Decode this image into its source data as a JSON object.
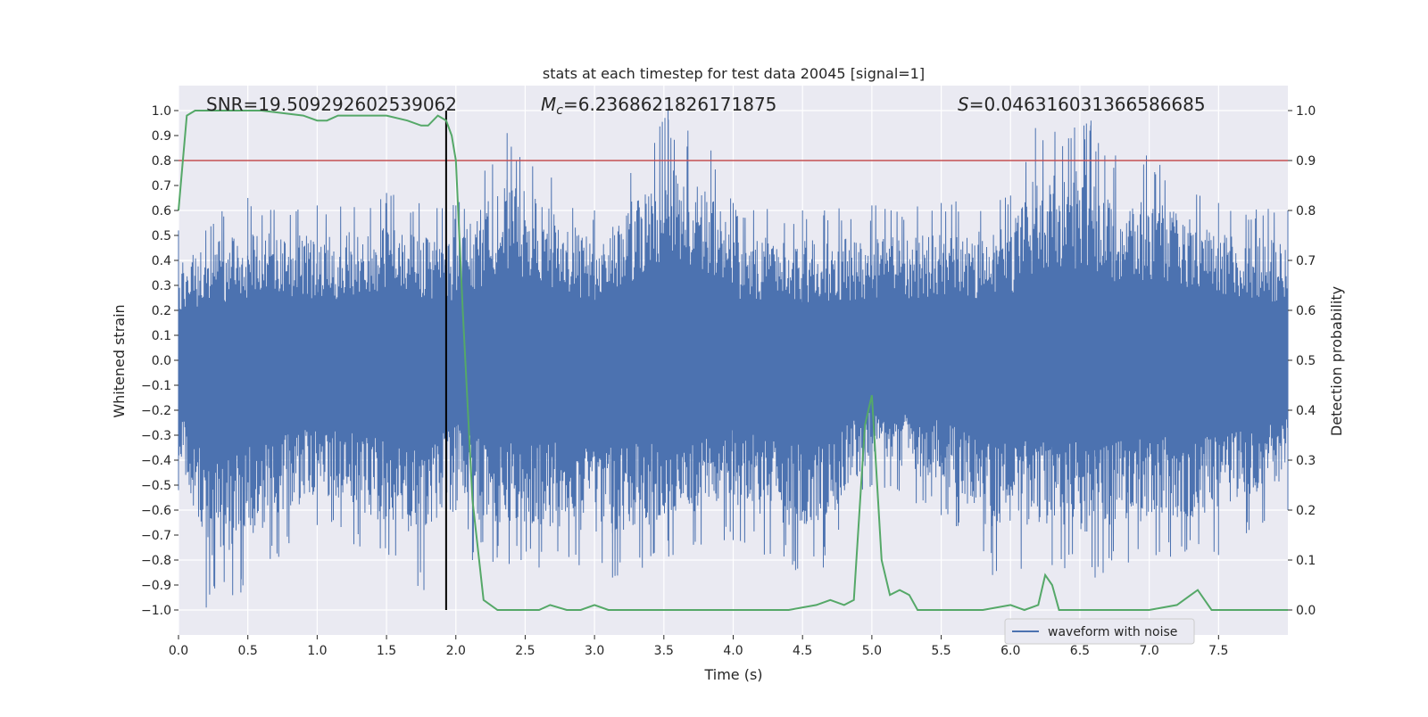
{
  "chart_data": {
    "type": "line",
    "title": "stats at each timestep for test data 20045 [signal=1]",
    "xlabel": "Time (s)",
    "ylabel_left": "Whitened strain",
    "ylabel_right": "Detection probability",
    "xlim": [
      0,
      8
    ],
    "ylim_left": [
      -1.1,
      1.1
    ],
    "ylim_right": [
      -0.05,
      1.05
    ],
    "x_ticks": [
      "0.0",
      "0.5",
      "1.0",
      "1.5",
      "2.0",
      "2.5",
      "3.0",
      "3.5",
      "4.0",
      "4.5",
      "5.0",
      "5.5",
      "6.0",
      "6.5",
      "7.0",
      "7.5"
    ],
    "y_ticks_left": [
      "1.0",
      "0.9",
      "0.8",
      "0.7",
      "0.6",
      "0.5",
      "0.4",
      "0.3",
      "0.2",
      "0.1",
      "0.0",
      "−0.1",
      "−0.2",
      "−0.3",
      "−0.4",
      "−0.5",
      "−0.6",
      "−0.7",
      "−0.8",
      "−0.9",
      "−1.0"
    ],
    "y_ticks_right": [
      "1.0",
      "0.9",
      "0.8",
      "0.7",
      "0.6",
      "0.5",
      "0.4",
      "0.3",
      "0.2",
      "0.1",
      "0.0"
    ],
    "annotations": {
      "snr": "SNR=19.509292602539062",
      "mc_symbol": "M",
      "mc_sub": "c",
      "mc_value": "=6.2368621826171875",
      "s_symbol": "S",
      "s_value": "=0.046316031366586685"
    },
    "threshold_line": {
      "axis": "right",
      "y": 0.9,
      "color": "#c44e52"
    },
    "marker_line": {
      "x": 1.93,
      "y_range": [
        -1.0,
        1.0
      ],
      "color": "#000000"
    },
    "legend": {
      "entries": [
        "waveform with noise"
      ],
      "placement": "lower-right"
    },
    "grid": true,
    "series": [
      {
        "name": "waveform with noise",
        "axis": "left",
        "color": "#4c72b0",
        "style": "dense noise trace",
        "envelope_upper": [
          [
            0.0,
            0.52
          ],
          [
            0.5,
            0.65
          ],
          [
            1.0,
            0.62
          ],
          [
            1.5,
            0.67
          ],
          [
            2.0,
            0.62
          ],
          [
            2.37,
            0.91
          ],
          [
            3.0,
            0.6
          ],
          [
            3.53,
            1.0
          ],
          [
            3.84,
            0.84
          ],
          [
            4.0,
            0.63
          ],
          [
            4.5,
            0.6
          ],
          [
            5.0,
            0.62
          ],
          [
            5.5,
            0.63
          ],
          [
            6.0,
            0.66
          ],
          [
            6.18,
            0.93
          ],
          [
            6.58,
            0.96
          ],
          [
            6.68,
            0.82
          ],
          [
            6.98,
            0.82
          ],
          [
            7.5,
            0.63
          ],
          [
            8.0,
            0.6
          ]
        ],
        "envelope_lower": [
          [
            0.0,
            -0.52
          ],
          [
            0.2,
            -0.99
          ],
          [
            0.45,
            -0.93
          ],
          [
            1.0,
            -0.66
          ],
          [
            1.77,
            -0.92
          ],
          [
            2.0,
            -0.6
          ],
          [
            2.12,
            -0.8
          ],
          [
            2.6,
            -0.83
          ],
          [
            3.13,
            -0.87
          ],
          [
            4.0,
            -0.72
          ],
          [
            4.45,
            -0.84
          ],
          [
            4.65,
            -0.83
          ],
          [
            5.0,
            -0.5
          ],
          [
            5.5,
            -0.62
          ],
          [
            5.87,
            -0.86
          ],
          [
            6.3,
            -0.82
          ],
          [
            6.61,
            -0.87
          ],
          [
            6.85,
            -0.81
          ],
          [
            7.5,
            -0.78
          ],
          [
            8.0,
            -0.6
          ]
        ]
      },
      {
        "name": "",
        "axis": "right",
        "color": "#55a868",
        "x": [
          0.0,
          0.06,
          0.12,
          0.3,
          0.6,
          0.9,
          1.0,
          1.07,
          1.15,
          1.3,
          1.5,
          1.65,
          1.75,
          1.8,
          1.87,
          1.93,
          1.97,
          2.0,
          2.05,
          2.12,
          2.2,
          2.3,
          2.4,
          2.5,
          2.6,
          2.68,
          2.8,
          2.9,
          3.0,
          3.1,
          3.3,
          3.5,
          3.7,
          3.9,
          4.1,
          4.4,
          4.6,
          4.7,
          4.8,
          4.87,
          4.95,
          5.0,
          5.07,
          5.13,
          5.2,
          5.27,
          5.33,
          5.45,
          5.8,
          6.0,
          6.1,
          6.2,
          6.25,
          6.3,
          6.35,
          6.45,
          6.55,
          6.65,
          6.8,
          7.0,
          7.2,
          7.3,
          7.35,
          7.45,
          7.7,
          8.0
        ],
        "y": [
          0.8,
          0.99,
          1.0,
          1.0,
          1.0,
          0.99,
          0.98,
          0.98,
          0.99,
          0.99,
          0.99,
          0.98,
          0.97,
          0.97,
          0.99,
          0.98,
          0.95,
          0.9,
          0.6,
          0.22,
          0.02,
          0.0,
          0.0,
          0.0,
          0.0,
          0.01,
          0.0,
          0.0,
          0.01,
          0.0,
          0.0,
          0.0,
          0.0,
          0.0,
          0.0,
          0.0,
          0.01,
          0.02,
          0.01,
          0.02,
          0.37,
          0.43,
          0.1,
          0.03,
          0.04,
          0.03,
          0.0,
          0.0,
          0.0,
          0.01,
          0.0,
          0.01,
          0.07,
          0.05,
          0.0,
          0.0,
          0.0,
          0.0,
          0.0,
          0.0,
          0.01,
          0.03,
          0.04,
          0.0,
          0.0,
          0.0
        ]
      }
    ]
  }
}
